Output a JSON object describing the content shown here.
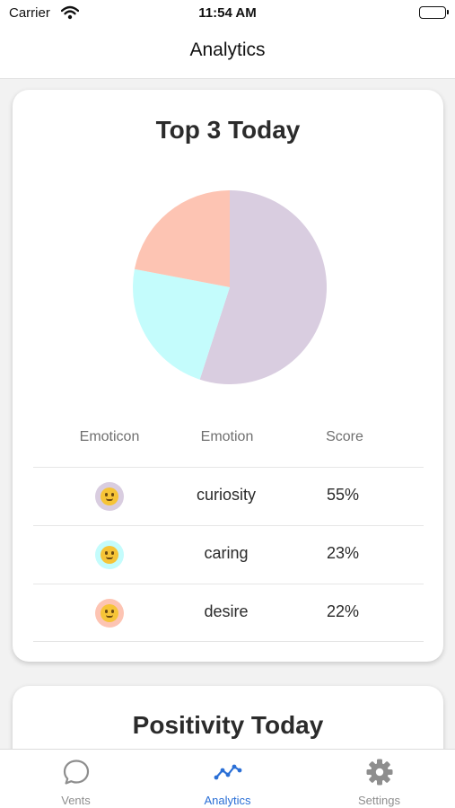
{
  "status_bar": {
    "carrier": "Carrier",
    "time": "11:54 AM"
  },
  "nav": {
    "title": "Analytics"
  },
  "top3": {
    "title": "Top 3 Today",
    "table": {
      "headers": [
        "Emoticon",
        "Emotion",
        "Score"
      ],
      "rows": [
        {
          "emotion": "curiosity",
          "score": "55%",
          "emoji_icon": "thinking-face-icon",
          "color": "#d9cde0"
        },
        {
          "emotion": "caring",
          "score": "23%",
          "emoji_icon": "hugging-face-icon",
          "color": "#c4fcfc"
        },
        {
          "emotion": "desire",
          "score": "22%",
          "emoji_icon": "kissing-face-icon",
          "color": "#fdc4b3"
        }
      ]
    }
  },
  "chart_data": {
    "type": "pie",
    "categories": [
      "curiosity",
      "caring",
      "desire"
    ],
    "values": [
      55,
      23,
      22
    ],
    "colors": [
      "#d9cde0",
      "#c4fcfc",
      "#fdc4b3"
    ],
    "start_angle_deg": 0,
    "direction": "clockwise",
    "title": ""
  },
  "positivity": {
    "title": "Positivity Today"
  },
  "tabs": [
    {
      "label": "Vents",
      "icon": "chat-bubble-icon",
      "active": false
    },
    {
      "label": "Analytics",
      "icon": "trend-line-icon",
      "active": true
    },
    {
      "label": "Settings",
      "icon": "gear-icon",
      "active": false
    }
  ],
  "colors": {
    "accent": "#2a6fd6",
    "inactive_tab": "#8e8e8e"
  }
}
